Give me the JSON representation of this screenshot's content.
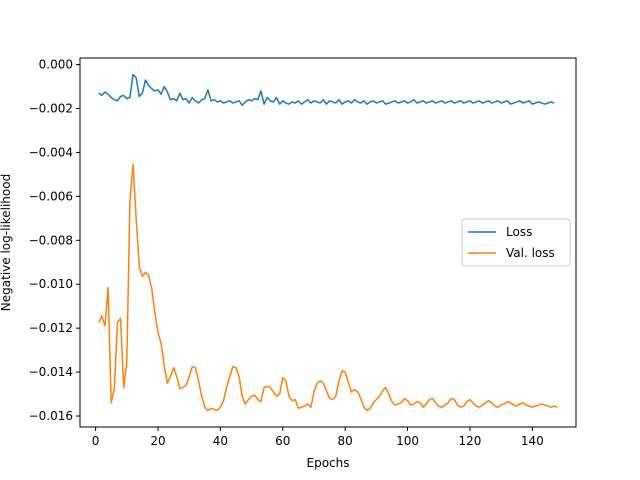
{
  "chart_data": {
    "type": "line",
    "xlabel": "Epochs",
    "ylabel": "Negative log-likelihood",
    "xlim": [
      -5,
      154
    ],
    "ylim": [
      -0.0165,
      0.0003
    ],
    "xticks": [
      0,
      20,
      40,
      60,
      80,
      100,
      120,
      140
    ],
    "xtick_labels": [
      "0",
      "20",
      "40",
      "60",
      "80",
      "100",
      "120",
      "140"
    ],
    "yticks": [
      0.0,
      -0.002,
      -0.004,
      -0.006,
      -0.008,
      -0.01,
      -0.012,
      -0.014,
      -0.016
    ],
    "ytick_labels": [
      "0.000",
      "−0.002",
      "−0.004",
      "−0.006",
      "−0.008",
      "−0.010",
      "−0.012",
      "−0.014",
      "−0.016"
    ],
    "grid": false,
    "legend_position": "center-right",
    "series": [
      {
        "name": "Loss",
        "color": "#1f77b4",
        "values": [
          -0.0013,
          -0.0014,
          -0.00125,
          -0.00135,
          -0.0015,
          -0.0016,
          -0.00165,
          -0.00145,
          -0.0014,
          -0.00155,
          -0.0015,
          -0.00045,
          -0.0006,
          -0.00145,
          -0.0013,
          -0.0007,
          -0.00095,
          -0.0011,
          -0.0012,
          -0.00115,
          -0.00135,
          -0.001,
          -0.00125,
          -0.0016,
          -0.00155,
          -0.00165,
          -0.0013,
          -0.0016,
          -0.00155,
          -0.00175,
          -0.0015,
          -0.00165,
          -0.00175,
          -0.0016,
          -0.00155,
          -0.00115,
          -0.00165,
          -0.0016,
          -0.0017,
          -0.00165,
          -0.00175,
          -0.0017,
          -0.00165,
          -0.00175,
          -0.0017,
          -0.00165,
          -0.00185,
          -0.0017,
          -0.0016,
          -0.00165,
          -0.00155,
          -0.0016,
          -0.0012,
          -0.0018,
          -0.0015,
          -0.00165,
          -0.0017,
          -0.0015,
          -0.0018,
          -0.00165,
          -0.00175,
          -0.0018,
          -0.0017,
          -0.00175,
          -0.00165,
          -0.0018,
          -0.0017,
          -0.0016,
          -0.00175,
          -0.00165,
          -0.0017,
          -0.00175,
          -0.0016,
          -0.0018,
          -0.00165,
          -0.0017,
          -0.00175,
          -0.0016,
          -0.0018,
          -0.0017,
          -0.00165,
          -0.00175,
          -0.0016,
          -0.0017,
          -0.00175,
          -0.00165,
          -0.0018,
          -0.0017,
          -0.00165,
          -0.00175,
          -0.0017,
          -0.00165,
          -0.0018,
          -0.00175,
          -0.0017,
          -0.00165,
          -0.00175,
          -0.0017,
          -0.00165,
          -0.00175,
          -0.0017,
          -0.0016,
          -0.00175,
          -0.0017,
          -0.00165,
          -0.00175,
          -0.0017,
          -0.00165,
          -0.00175,
          -0.0017,
          -0.00165,
          -0.00175,
          -0.0017,
          -0.00165,
          -0.00175,
          -0.0017,
          -0.00165,
          -0.00175,
          -0.0017,
          -0.00165,
          -0.00175,
          -0.0017,
          -0.00165,
          -0.00175,
          -0.0017,
          -0.00165,
          -0.00175,
          -0.0017,
          -0.00165,
          -0.00175,
          -0.0017,
          -0.00165,
          -0.0018,
          -0.00175,
          -0.0017,
          -0.00165,
          -0.00175,
          -0.0017,
          -0.00165,
          -0.0018,
          -0.00175,
          -0.0017,
          -0.00175,
          -0.0018,
          -0.00175,
          -0.0017,
          -0.00175
        ]
      },
      {
        "name": "Val. loss",
        "color": "#ff7f0e",
        "values": [
          -0.01175,
          -0.01145,
          -0.0119,
          -0.01015,
          -0.0154,
          -0.01475,
          -0.01175,
          -0.01155,
          -0.0147,
          -0.0136,
          -0.0062,
          -0.00455,
          -0.007,
          -0.0092,
          -0.00965,
          -0.00945,
          -0.0096,
          -0.0102,
          -0.0113,
          -0.0122,
          -0.0127,
          -0.0137,
          -0.0145,
          -0.0142,
          -0.0138,
          -0.0142,
          -0.01475,
          -0.0147,
          -0.0146,
          -0.0142,
          -0.01375,
          -0.0138,
          -0.0144,
          -0.0151,
          -0.0156,
          -0.01575,
          -0.01565,
          -0.0157,
          -0.01575,
          -0.0156,
          -0.0153,
          -0.0147,
          -0.0142,
          -0.01375,
          -0.0138,
          -0.0142,
          -0.0151,
          -0.01545,
          -0.01525,
          -0.0151,
          -0.01505,
          -0.01525,
          -0.01535,
          -0.0147,
          -0.01465,
          -0.0147,
          -0.0149,
          -0.0151,
          -0.015,
          -0.01425,
          -0.0144,
          -0.0151,
          -0.0153,
          -0.01525,
          -0.01565,
          -0.0156,
          -0.01555,
          -0.01545,
          -0.0156,
          -0.0149,
          -0.0145,
          -0.0144,
          -0.0145,
          -0.01485,
          -0.0152,
          -0.01525,
          -0.0151,
          -0.0144,
          -0.01395,
          -0.014,
          -0.01445,
          -0.0149,
          -0.0148,
          -0.0149,
          -0.0152,
          -0.0156,
          -0.01575,
          -0.01565,
          -0.0154,
          -0.01525,
          -0.0151,
          -0.01485,
          -0.0147,
          -0.015,
          -0.01535,
          -0.0155,
          -0.01545,
          -0.0154,
          -0.0152,
          -0.0153,
          -0.0155,
          -0.01545,
          -0.01535,
          -0.0154,
          -0.0156,
          -0.01545,
          -0.01525,
          -0.0152,
          -0.0154,
          -0.01555,
          -0.0156,
          -0.0155,
          -0.0154,
          -0.0152,
          -0.01525,
          -0.0155,
          -0.0156,
          -0.01555,
          -0.01535,
          -0.01525,
          -0.0154,
          -0.01555,
          -0.0156,
          -0.0155,
          -0.0154,
          -0.0153,
          -0.0154,
          -0.01555,
          -0.0156,
          -0.0155,
          -0.01545,
          -0.01535,
          -0.0154,
          -0.0155,
          -0.01555,
          -0.01545,
          -0.0154,
          -0.0155,
          -0.01555,
          -0.0156,
          -0.01555,
          -0.0155,
          -0.01545,
          -0.0155,
          -0.01555,
          -0.0156,
          -0.01555,
          -0.0156
        ]
      }
    ]
  }
}
